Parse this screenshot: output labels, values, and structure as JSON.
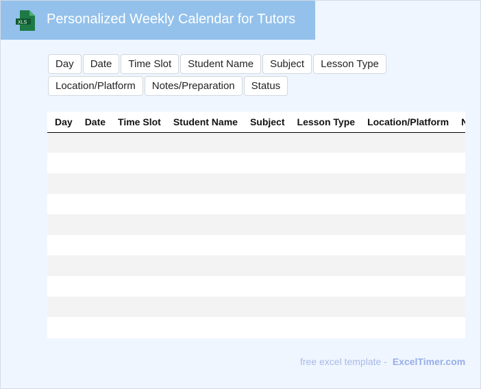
{
  "header": {
    "title": "Personalized Weekly Calendar for Tutors",
    "icon": "xls-file-icon",
    "icon_label": "XLS"
  },
  "columns": [
    "Day",
    "Date",
    "Time Slot",
    "Student Name",
    "Subject",
    "Lesson Type",
    "Location/Platform",
    "Notes/Preparation",
    "Status"
  ],
  "row_count": 10,
  "footer": {
    "text": "free excel template -",
    "brand": "ExcelTimer.com"
  },
  "colors": {
    "header_bg": "#93c1eb",
    "page_bg": "#eff6ff",
    "row_alt": "#f3f3f3",
    "brand": "#98ade8"
  }
}
